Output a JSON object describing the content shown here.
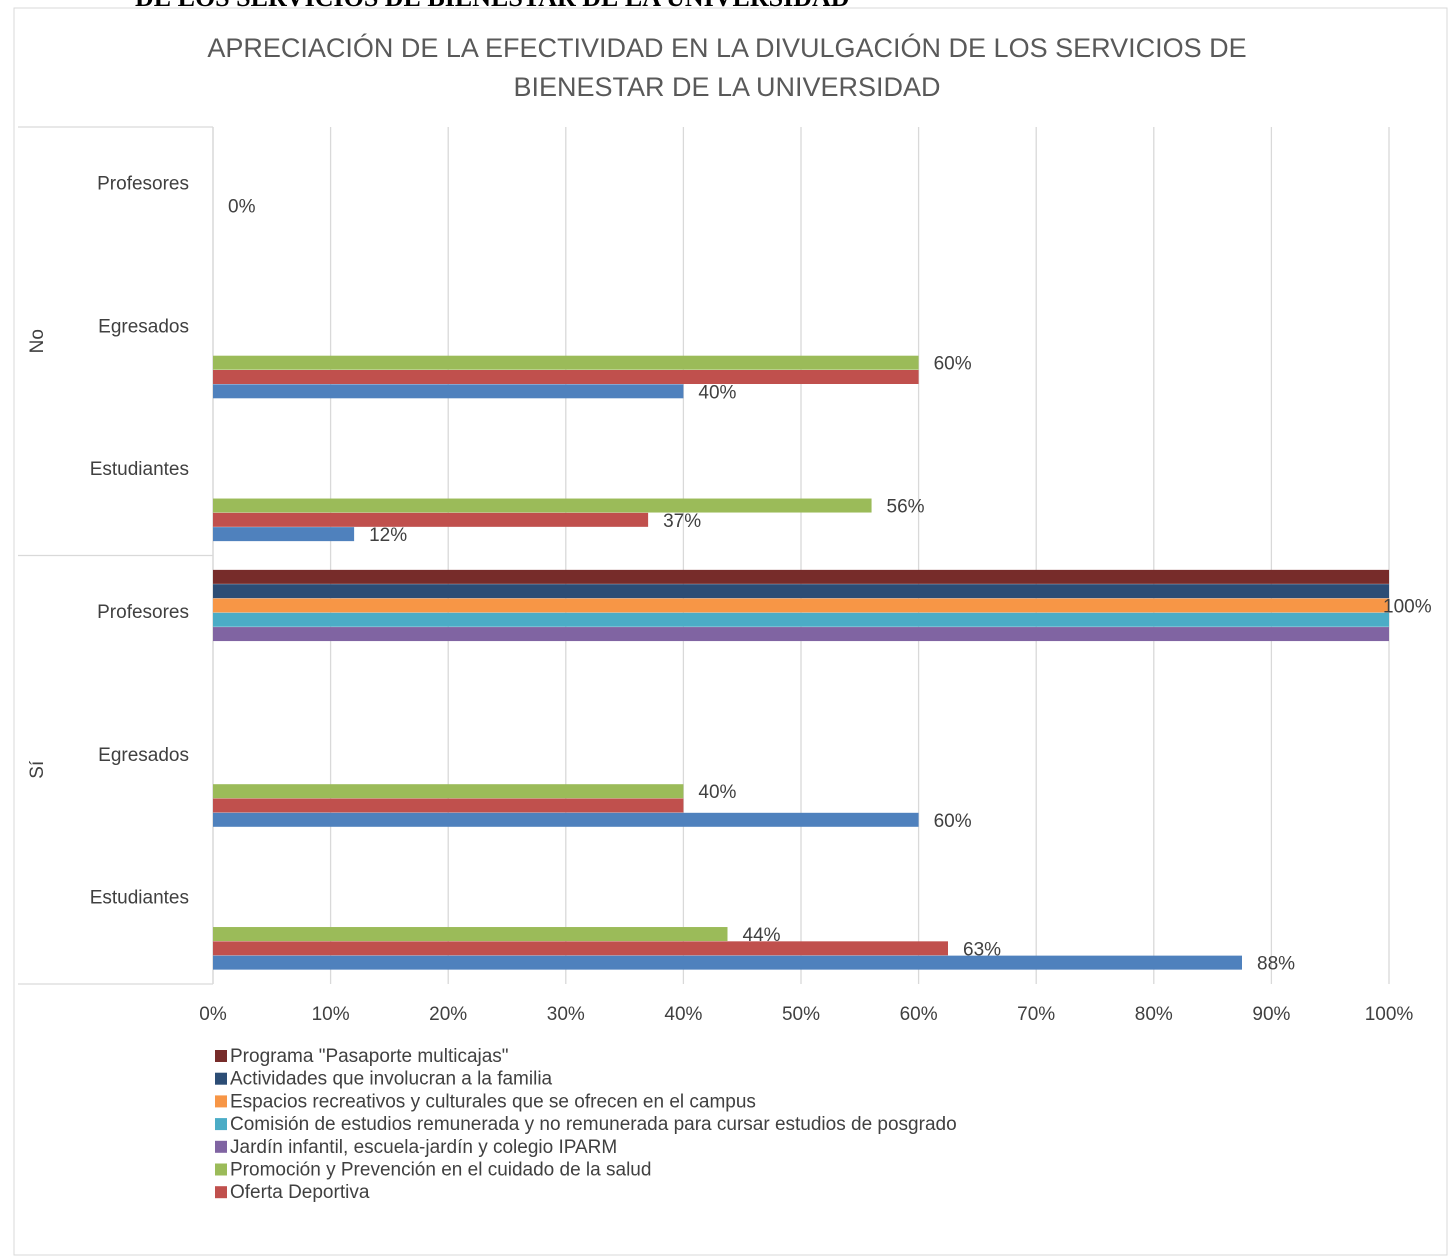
{
  "page_heading": "DE LOS SERVICIOS DE BIENESTAR DE LA UNIVERSIDAD",
  "chart_data": {
    "type": "bar",
    "orientation": "horizontal",
    "title": [
      "APRECIACIÓN DE LA EFECTIVIDAD EN LA DIVULGACIÓN DE LOS SERVICIOS DE",
      "BIENESTAR DE LA UNIVERSIDAD"
    ],
    "groups": [
      {
        "name": "Sí",
        "categories": [
          "Estudiantes",
          "Egresados",
          "Profesores"
        ]
      },
      {
        "name": "No",
        "categories": [
          "Estudiantes",
          "Egresados",
          "Profesores"
        ]
      }
    ],
    "series": [
      {
        "name": null,
        "color": "#4f81bd",
        "values": [
          87.5,
          60,
          null,
          12,
          40,
          null
        ],
        "value_labels": [
          "88%",
          "60%",
          null,
          "12%",
          "40%",
          null
        ]
      },
      {
        "name": "Oferta Deportiva",
        "color": "#c0504d",
        "values": [
          62.5,
          40,
          null,
          37,
          60,
          null
        ],
        "value_labels": [
          "63%",
          null,
          null,
          "37%",
          null,
          null
        ]
      },
      {
        "name": "Promoción y Prevención en el cuidado de la salud",
        "color": "#9bbb59",
        "values": [
          43.75,
          40,
          null,
          56,
          60,
          null
        ],
        "value_labels": [
          "44%",
          "40%",
          null,
          "56%",
          "60%",
          null
        ]
      },
      {
        "name": "Jardín infantil, escuela-jardín y colegio IPARM",
        "color": "#8064a2",
        "values": [
          null,
          null,
          100,
          null,
          null,
          0
        ],
        "value_labels": [
          null,
          null,
          null,
          null,
          null,
          "0%"
        ]
      },
      {
        "name": "Comisión de estudios remunerada y no remunerada para cursar estudios de posgrado",
        "color": "#4bacc6",
        "values": [
          null,
          null,
          100,
          null,
          null,
          null
        ],
        "value_labels": [
          null,
          null,
          null,
          null,
          null,
          null
        ]
      },
      {
        "name": "Espacios recreativos y culturales que se ofrecen en el campus",
        "color": "#f79646",
        "values": [
          null,
          null,
          100,
          null,
          null,
          null
        ],
        "value_labels": [
          null,
          null,
          "100%",
          null,
          null,
          null
        ]
      },
      {
        "name": "Actividades que involucran a la familia",
        "color": "#2c4d75",
        "values": [
          null,
          null,
          100,
          null,
          null,
          null
        ],
        "value_labels": [
          null,
          null,
          null,
          null,
          null,
          null
        ]
      },
      {
        "name": "Programa \"Pasaporte multicajas\"",
        "color": "#772c2a",
        "values": [
          null,
          null,
          100,
          null,
          null,
          null
        ],
        "value_labels": [
          null,
          null,
          null,
          null,
          null,
          null
        ]
      }
    ],
    "xlim": [
      0,
      100
    ],
    "xticks": [
      {
        "value": 0,
        "label": "0%"
      },
      {
        "value": 10,
        "label": "10%"
      },
      {
        "value": 20,
        "label": "20%"
      },
      {
        "value": 30,
        "label": "30%"
      },
      {
        "value": 40,
        "label": "40%"
      },
      {
        "value": 50,
        "label": "50%"
      },
      {
        "value": 60,
        "label": "60%"
      },
      {
        "value": 70,
        "label": "70%"
      },
      {
        "value": 80,
        "label": "80%"
      },
      {
        "value": 90,
        "label": "90%"
      },
      {
        "value": 100,
        "label": "100%"
      }
    ],
    "grid": true,
    "legend": "bottom"
  }
}
